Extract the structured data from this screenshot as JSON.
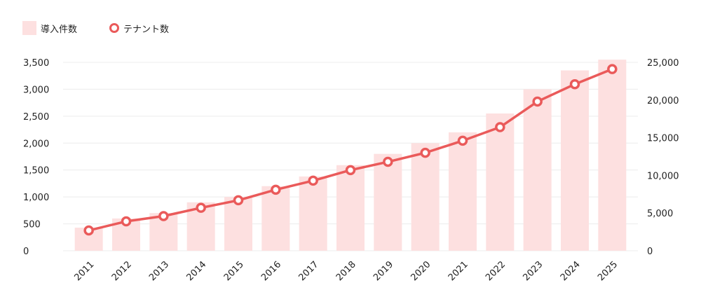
{
  "legend": {
    "bar_label": "導入件数",
    "line_label": "テナント数"
  },
  "colors": {
    "bar": "#fde0e0",
    "line": "#ea5a5a",
    "grid": "#ececec"
  },
  "chart_data": {
    "type": "bar",
    "categories": [
      "2011",
      "2012",
      "2013",
      "2014",
      "2015",
      "2016",
      "2017",
      "2018",
      "2019",
      "2020",
      "2021",
      "2022",
      "2023",
      "2024",
      "2025"
    ],
    "series": [
      {
        "name": "導入件数",
        "type": "bar",
        "axis": "left",
        "values": [
          430,
          600,
          700,
          900,
          1000,
          1200,
          1380,
          1590,
          1800,
          2000,
          2200,
          2550,
          3000,
          3350,
          3550
        ]
      },
      {
        "name": "テナント数",
        "type": "line",
        "axis": "right",
        "values": [
          2700,
          3900,
          4600,
          5700,
          6700,
          8100,
          9300,
          10700,
          11800,
          13000,
          14600,
          16400,
          19800,
          22100,
          24100
        ]
      }
    ],
    "y_left": {
      "ticks": [
        0,
        500,
        1000,
        1500,
        2000,
        2500,
        3000,
        3500
      ],
      "tick_labels": [
        "0",
        "500",
        "1,000",
        "1,500",
        "2,000",
        "2,500",
        "3,000",
        "3,500"
      ],
      "ylim": [
        0,
        3500
      ]
    },
    "y_right": {
      "ticks": [
        0,
        5000,
        10000,
        15000,
        20000,
        25000
      ],
      "tick_labels": [
        "0",
        "5,000",
        "10,000",
        "15,000",
        "20,000",
        "25,000"
      ],
      "ylim": [
        0,
        25000
      ]
    },
    "grid": true,
    "legend_position": "top-left"
  }
}
